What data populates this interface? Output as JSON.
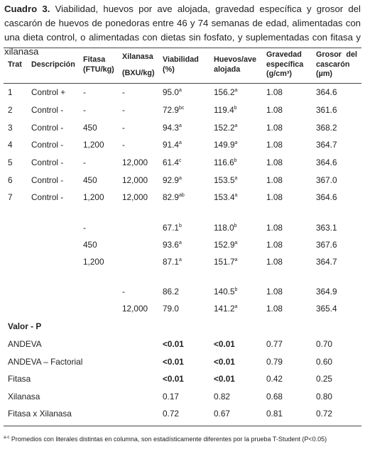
{
  "caption": {
    "label": "Cuadro 3.",
    "text": " Viabilidad, huevos por ave alojada, gravedad específica y grosor del cascarón de huevos de ponedoras entre 46 y 74 semanas de edad, alimentadas con una dieta control, o alimentadas con dietas sin fosfato, y suplementadas con fitasa y xilanasa"
  },
  "headers": {
    "trat": "Trat",
    "descripcion": "Descripción",
    "fitasa": [
      "Fitasa",
      "(FTU/kg)"
    ],
    "xilanasa": [
      "Xilanasa",
      "(BXU/kg)"
    ],
    "viabilidad": [
      "Viabilidad",
      "(%)"
    ],
    "huevos": [
      "Huevos/ave",
      "alojada"
    ],
    "gravedad": [
      "Gravedad",
      "específica",
      "(g/cm³)"
    ],
    "grosor": [
      "Grosor del",
      "cascarón",
      "(µm)"
    ]
  },
  "treatments": [
    {
      "trat": "1",
      "desc": "Control +",
      "fitasa": "-",
      "xilanasa": "-",
      "viab": "95.0",
      "viab_sup": "a",
      "huevos": "156.2",
      "huevos_sup": "a",
      "grav": "1.08",
      "grosor": "364.6"
    },
    {
      "trat": "2",
      "desc": "Control -",
      "fitasa": "-",
      "xilanasa": "-",
      "viab": "72.9",
      "viab_sup": "bc",
      "huevos": "119.4",
      "huevos_sup": "b",
      "grav": "1.08",
      "grosor": "361.6"
    },
    {
      "trat": "3",
      "desc": "Control -",
      "fitasa": "450",
      "xilanasa": "-",
      "viab": "94.3",
      "viab_sup": "a",
      "huevos": "152.2",
      "huevos_sup": "a",
      "grav": "1.08",
      "grosor": "368.2"
    },
    {
      "trat": "4",
      "desc": "Control -",
      "fitasa": "1,200",
      "xilanasa": "-",
      "viab": "91.4",
      "viab_sup": "a",
      "huevos": "149.9",
      "huevos_sup": "a",
      "grav": "1.08",
      "grosor": "364.7"
    },
    {
      "trat": "5",
      "desc": "Control -",
      "fitasa": "-",
      "xilanasa": "12,000",
      "viab": "61.4",
      "viab_sup": "c",
      "huevos": "116.6",
      "huevos_sup": "b",
      "grav": "1.08",
      "grosor": "364.6"
    },
    {
      "trat": "6",
      "desc": "Control -",
      "fitasa": "450",
      "xilanasa": "12,000",
      "viab": "92.9",
      "viab_sup": "a",
      "huevos": "153.5",
      "huevos_sup": "a",
      "grav": "1.08",
      "grosor": "367.0"
    },
    {
      "trat": "7",
      "desc": "Control -",
      "fitasa": "1,200",
      "xilanasa": "12,000",
      "viab": "82.9",
      "viab_sup": "ab",
      "huevos": "153.4",
      "huevos_sup": "a",
      "grav": "1.08",
      "grosor": "364.6"
    }
  ],
  "fitasa_means": [
    {
      "fitasa": "-",
      "viab": "67.1",
      "viab_sup": "b",
      "huevos": "118.0",
      "huevos_sup": "b",
      "grav": "1.08",
      "grosor": "363.1"
    },
    {
      "fitasa": "450",
      "viab": "93.6",
      "viab_sup": "a",
      "huevos": "152.9",
      "huevos_sup": "a",
      "grav": "1.08",
      "grosor": "367.6"
    },
    {
      "fitasa": "1,200",
      "viab": "87.1",
      "viab_sup": "a",
      "huevos": "151.7",
      "huevos_sup": "a",
      "grav": "1.08",
      "grosor": "364.7"
    }
  ],
  "xilanasa_means": [
    {
      "xilanasa": "-",
      "viab": "86.2",
      "viab_sup": "",
      "huevos": "140.5",
      "huevos_sup": "b",
      "grav": "1.08",
      "grosor": "364.9"
    },
    {
      "xilanasa": "12,000",
      "viab": "79.0",
      "viab_sup": "",
      "huevos": "141.2",
      "huevos_sup": "a",
      "grav": "1.08",
      "grosor": "365.4"
    }
  ],
  "pvalues_title": "Valor - P",
  "pvalues": [
    {
      "label": "ANDEVA",
      "viab": "<0.01",
      "viab_bold": true,
      "huevos": "<0.01",
      "huevos_bold": true,
      "grav": "0.77",
      "grosor": "0.70"
    },
    {
      "label": "ANDEVA – Factorial",
      "viab": "<0.01",
      "viab_bold": true,
      "huevos": "<0.01",
      "huevos_bold": true,
      "grav": "0.79",
      "grosor": "0.60"
    },
    {
      "label": "Fitasa",
      "viab": "<0.01",
      "viab_bold": true,
      "huevos": "<0.01",
      "huevos_bold": true,
      "grav": "0.42",
      "grosor": "0.25"
    },
    {
      "label": "Xilanasa",
      "viab": "0.17",
      "viab_bold": false,
      "huevos": "0.82",
      "huevos_bold": false,
      "grav": "0.68",
      "grosor": "0.80"
    },
    {
      "label": "Fitasa x Xilanasa",
      "viab": "0.72",
      "viab_bold": false,
      "huevos": "0.67",
      "huevos_bold": false,
      "grav": "0.81",
      "grosor": "0.72"
    }
  ],
  "footnote": {
    "sup": "a-c",
    "text": " Promedios con literales distintas en columna, son estadísticamente diferentes por la prueba T-Student (P<0.05)"
  }
}
